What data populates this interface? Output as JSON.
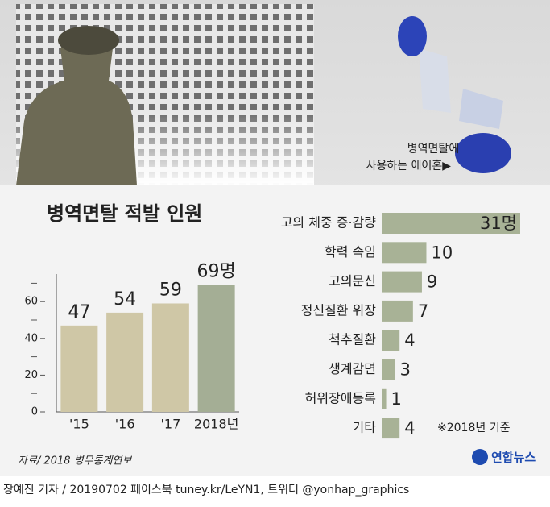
{
  "chart_data": [
    {
      "type": "bar",
      "title": "병역면탈 적발 인원",
      "categories": [
        "'15",
        "'16",
        "'17",
        "2018년"
      ],
      "values": [
        47,
        54,
        59,
        69
      ],
      "value_labels": [
        "47",
        "54",
        "59",
        "69명"
      ],
      "colors": [
        "#cfc7a6",
        "#cfc7a6",
        "#cfc7a6",
        "#a4ae95"
      ],
      "ylim": [
        0,
        75
      ],
      "yticks": [
        0,
        20,
        40,
        60
      ],
      "minor_yticks": [
        10,
        30,
        50,
        70
      ]
    },
    {
      "type": "hbar",
      "categories": [
        "고의 체중 증·감량",
        "학력 속임",
        "고의문신",
        "정신질환 위장",
        "척추질환",
        "생계감면",
        "허위장애등록",
        "기타"
      ],
      "values": [
        31,
        10,
        9,
        7,
        4,
        3,
        1,
        4
      ],
      "value_labels": [
        "31명",
        "10",
        "9",
        "7",
        "4",
        "3",
        "1",
        "4"
      ],
      "color": "#a8b296",
      "xlim": [
        0,
        31
      ],
      "note": "※2018년 기준"
    }
  ],
  "photo_caption": [
    "병역면탈에",
    "사용하는 에어혼▶"
  ],
  "source": "자료/ 2018 병무통계연보",
  "logo": "연합뉴스",
  "credit": "장예진 기자 / 20190702 페이스북 tuney.kr/LeYN1, 트위터 @yonhap_graphics"
}
